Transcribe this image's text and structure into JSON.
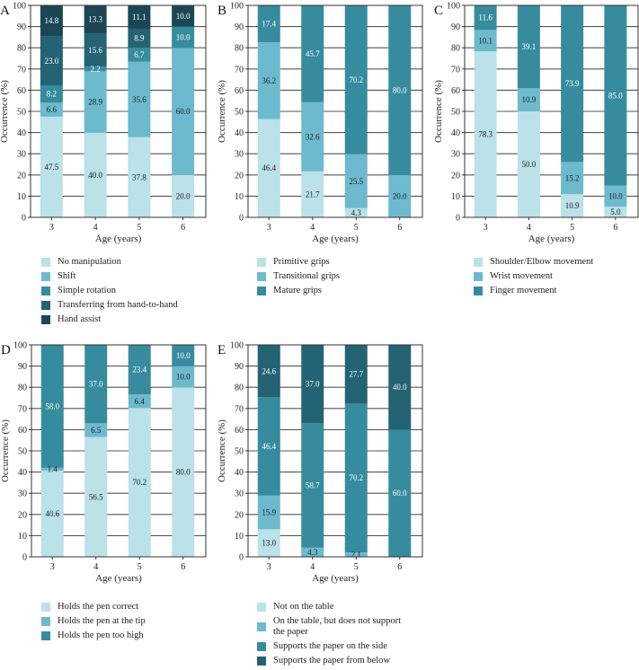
{
  "chart_data": [
    {
      "type": "bar",
      "stacked": true,
      "panel": "A",
      "xlabel": "Age (years)",
      "ylabel": "Occurrence (%)",
      "ylim": [
        0,
        100
      ],
      "yticks": [
        0,
        10,
        20,
        30,
        40,
        50,
        60,
        70,
        80,
        90,
        100
      ],
      "grid": true,
      "legend_position": "below",
      "categories": [
        "3",
        "4",
        "5",
        "6"
      ],
      "series": [
        {
          "name": "No manipulation",
          "color": "#bbe1e9",
          "label_color": "#222222",
          "values": [
            47.5,
            40.0,
            37.8,
            20.0
          ]
        },
        {
          "name": "Shift",
          "color": "#6dbace",
          "label_color": "#222222",
          "values": [
            6.6,
            28.9,
            35.6,
            60.0
          ]
        },
        {
          "name": "Simple rotation",
          "color": "#368c9e",
          "label_color": "#ffffff",
          "values": [
            8.2,
            2.2,
            6.7,
            10.0
          ]
        },
        {
          "name": "Transferring from hand-to-hand",
          "color": "#236373",
          "label_color": "#ffffff",
          "values": [
            23.0,
            15.6,
            8.9,
            0
          ]
        },
        {
          "name": "Hand assist",
          "color": "#1b4754",
          "label_color": "#ffffff",
          "values": [
            14.8,
            13.3,
            11.1,
            10.0
          ]
        }
      ]
    },
    {
      "type": "bar",
      "stacked": true,
      "panel": "B",
      "xlabel": "Age (years)",
      "ylabel": "Occurrence (%)",
      "ylim": [
        0,
        100
      ],
      "yticks": [
        0,
        10,
        20,
        30,
        40,
        50,
        60,
        70,
        80,
        90,
        100
      ],
      "grid": true,
      "legend_position": "below",
      "categories": [
        "3",
        "4",
        "5",
        "6"
      ],
      "series": [
        {
          "name": "Primitive grips",
          "color": "#bbe1e9",
          "label_color": "#222222",
          "values": [
            46.4,
            21.7,
            4.3,
            0
          ]
        },
        {
          "name": "Transitional grips",
          "color": "#6dbace",
          "label_color": "#222222",
          "values": [
            36.2,
            32.6,
            25.5,
            20.0
          ]
        },
        {
          "name": "Mature grips",
          "color": "#368c9e",
          "label_color": "#ffffff",
          "values": [
            17.4,
            45.7,
            70.2,
            80.0
          ]
        }
      ]
    },
    {
      "type": "bar",
      "stacked": true,
      "panel": "C",
      "xlabel": "Age (years)",
      "ylabel": "Occurrence (%)",
      "ylim": [
        0,
        100
      ],
      "yticks": [
        0,
        10,
        20,
        30,
        40,
        50,
        60,
        70,
        80,
        90,
        100
      ],
      "grid": true,
      "legend_position": "below",
      "categories": [
        "3",
        "4",
        "5",
        "6"
      ],
      "series": [
        {
          "name": "Shoulder/Elbow movement",
          "color": "#bbe1e9",
          "label_color": "#222222",
          "values": [
            78.3,
            50.0,
            10.9,
            5.0
          ]
        },
        {
          "name": "Wrist movement",
          "color": "#6dbace",
          "label_color": "#222222",
          "values": [
            10.1,
            10.9,
            15.2,
            10.0
          ]
        },
        {
          "name": "Finger movement",
          "color": "#368c9e",
          "label_color": "#ffffff",
          "values": [
            11.6,
            39.1,
            73.9,
            85.0
          ]
        }
      ]
    },
    {
      "type": "bar",
      "stacked": true,
      "panel": "D",
      "xlabel": "Age (years)",
      "ylabel": "Occurrence (%)",
      "ylim": [
        0,
        100
      ],
      "yticks": [
        0,
        10,
        20,
        30,
        40,
        50,
        60,
        70,
        80,
        90,
        100
      ],
      "grid": true,
      "legend_position": "below",
      "categories": [
        "3",
        "4",
        "5",
        "6"
      ],
      "series": [
        {
          "name": "Holds the pen correct",
          "color": "#bbe1e9",
          "label_color": "#222222",
          "values": [
            40.6,
            56.5,
            70.2,
            80.0
          ]
        },
        {
          "name": "Holds the pen at the tip",
          "color": "#6dbace",
          "label_color": "#222222",
          "values": [
            1.4,
            6.5,
            6.4,
            10.0
          ]
        },
        {
          "name": "Holds the pen too high",
          "color": "#368c9e",
          "label_color": "#ffffff",
          "values": [
            58.0,
            37.0,
            23.4,
            10.0
          ]
        }
      ]
    },
    {
      "type": "bar",
      "stacked": true,
      "panel": "E",
      "xlabel": "Age (years)",
      "ylabel": "Occurrence (%)",
      "ylim": [
        0,
        100
      ],
      "yticks": [
        0,
        10,
        20,
        30,
        40,
        50,
        60,
        70,
        80,
        90,
        100
      ],
      "grid": true,
      "legend_position": "below",
      "categories": [
        "3",
        "4",
        "5",
        "6"
      ],
      "series": [
        {
          "name": "Not on the table",
          "color": "#bbe1e9",
          "label_color": "#222222",
          "values": [
            13.0,
            0,
            0,
            0
          ]
        },
        {
          "name": "On the table, but does not support the paper",
          "color": "#6dbace",
          "label_color": "#222222",
          "values": [
            15.9,
            4.3,
            2.1,
            0
          ]
        },
        {
          "name": "Supports the paper on the side",
          "color": "#368c9e",
          "label_color": "#ffffff",
          "values": [
            46.4,
            58.7,
            70.2,
            60.0
          ]
        },
        {
          "name": "Supports the paper from below",
          "color": "#236373",
          "label_color": "#ffffff",
          "values": [
            24.6,
            37.0,
            27.7,
            40.0
          ]
        }
      ]
    }
  ]
}
